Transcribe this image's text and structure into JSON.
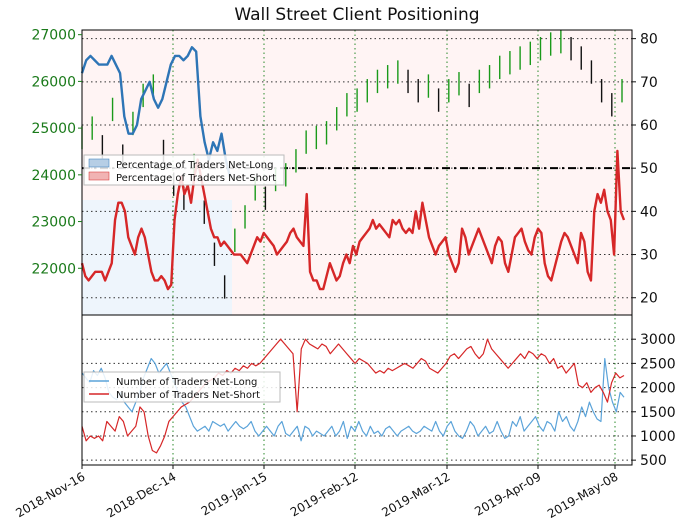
{
  "chart_data": [
    {
      "type": "line",
      "title": "Wall Street Client Positioning",
      "x_tick_labels": [
        "2018-Nov-16",
        "2018-Dec-14",
        "2019-Jan-15",
        "2019-Feb-12",
        "2019-Mar-12",
        "2019-Apr-09",
        "2019-May-08"
      ],
      "price_axis": {
        "ylim": [
          21000,
          27100
        ],
        "ticks": [
          22000,
          23000,
          24000,
          25000,
          26000,
          27000
        ],
        "color": "#1a7a1a"
      },
      "percent_axis": {
        "ylim": [
          16,
          82
        ],
        "ticks": [
          20,
          30,
          40,
          50,
          60,
          70,
          80
        ]
      },
      "reference_line": 50,
      "legend": {
        "position": "left",
        "entries": [
          "Percentage of Traders Net-Long",
          "Percentage of Traders Net-Short"
        ]
      },
      "series": [
        {
          "name": "Percentage of Traders Net-Long",
          "color": "#2e75b6",
          "values": [
            72,
            75,
            76,
            75,
            74,
            74,
            74,
            76,
            74,
            72,
            62,
            58,
            58,
            60,
            66,
            68,
            70,
            66,
            64,
            66,
            70,
            74,
            76,
            76,
            75,
            76,
            78,
            77,
            62,
            56,
            52,
            56,
            54,
            58,
            52,
            48
          ]
        },
        {
          "name": "Percentage of Traders Net-Short",
          "color": "#d62728",
          "values": [
            28,
            25,
            24,
            25,
            26,
            26,
            26,
            24,
            26,
            28,
            38,
            42,
            42,
            40,
            34,
            32,
            30,
            34,
            36,
            34,
            30,
            26,
            24,
            24,
            25,
            24,
            22,
            23,
            38,
            44,
            48,
            44,
            46,
            42,
            48,
            52,
            48,
            44,
            40,
            36,
            34,
            34,
            32,
            33,
            32,
            31,
            30,
            30,
            30,
            29,
            28,
            30,
            32,
            34,
            33,
            35,
            34,
            33,
            32,
            30,
            31,
            32,
            33,
            35,
            36,
            34,
            33,
            32,
            44,
            26,
            24,
            24,
            22,
            22,
            25,
            28,
            26,
            24,
            25,
            28,
            30,
            28,
            32,
            30,
            33,
            34,
            35,
            36,
            38,
            36,
            37,
            36,
            35,
            34,
            38,
            37,
            38,
            36,
            35,
            36,
            35,
            40,
            36,
            42,
            38,
            34,
            32,
            30,
            32,
            33,
            34,
            30,
            28,
            26,
            28,
            36,
            34,
            30,
            32,
            34,
            36,
            34,
            32,
            30,
            28,
            32,
            34,
            33,
            28,
            26,
            30,
            34,
            35,
            36,
            33,
            31,
            30,
            34,
            36,
            35,
            28,
            25,
            24,
            27,
            30,
            33,
            35,
            34,
            32,
            30,
            28,
            35,
            33,
            26,
            24,
            40,
            44,
            42,
            45,
            40,
            38,
            30,
            54,
            40,
            38
          ]
        }
      ]
    },
    {
      "type": "line",
      "x_tick_labels": [
        "2018-Nov-16",
        "2018-Dec-14",
        "2019-Jan-15",
        "2019-Feb-12",
        "2019-Mar-12",
        "2019-Apr-09",
        "2019-May-08"
      ],
      "ylim": [
        400,
        3500
      ],
      "ticks": [
        500,
        1000,
        1500,
        2000,
        2500,
        3000
      ],
      "legend": {
        "position": "left",
        "entries": [
          "Number of Traders Net-Long",
          "Number of Traders Net-Short"
        ]
      },
      "series": [
        {
          "name": "Number of Traders Net-Long",
          "color": "#5ba3d9",
          "values": [
            2300,
            2200,
            2100,
            2350,
            2250,
            2400,
            2200,
            1900,
            1800,
            1750,
            1900,
            1700,
            1600,
            1500,
            1700,
            1900,
            2200,
            2400,
            2600,
            2500,
            2300,
            2400,
            2500,
            2300,
            2100,
            1900,
            1700,
            1600,
            1400,
            1200,
            1100,
            1150,
            1200,
            1100,
            1300,
            1250,
            1200,
            1250,
            1100,
            1200,
            1300,
            1200,
            1150,
            1200,
            1300,
            1100,
            1000,
            1100,
            1200,
            1100,
            1000,
            1200,
            1300,
            1050,
            1000,
            1100,
            1200,
            900,
            1200,
            1150,
            1000,
            1100,
            1050,
            1000,
            1100,
            1200,
            1000,
            1100,
            1300,
            950,
            1200,
            1100,
            1300,
            1100,
            1000,
            1200,
            1050,
            1100,
            1000,
            1150,
            1200,
            1100,
            1000,
            1100,
            1150,
            1200,
            1100,
            1050,
            1100,
            1200,
            1150,
            1100,
            1300,
            1100,
            1000,
            1200,
            1300,
            1100,
            1000,
            950,
            1100,
            1300,
            1200,
            1000,
            1100,
            1200,
            1050,
            1100,
            1300,
            1100,
            950,
            1000,
            1300,
            1200,
            1400,
            1100,
            1200,
            1300,
            1400,
            1200,
            1100,
            1300,
            1250,
            1100,
            1500,
            1300,
            1400,
            1200,
            1100,
            1300,
            1600,
            1400,
            1700,
            1500,
            1350,
            1300,
            2600,
            2000,
            1700,
            1500,
            1900,
            1800
          ]
        },
        {
          "name": "Number of Traders Net-Short",
          "color": "#d62728",
          "values": [
            1200,
            900,
            1000,
            950,
            1000,
            900,
            1300,
            1200,
            1100,
            1400,
            1300,
            1000,
            1100,
            1200,
            1600,
            1500,
            1000,
            700,
            650,
            800,
            1000,
            1300,
            1400,
            1500,
            1600,
            1650,
            1700,
            1800,
            1900,
            2000,
            2100,
            2150,
            2200,
            2300,
            2250,
            2350,
            2300,
            2400,
            2350,
            2450,
            2400,
            2500,
            2450,
            2500,
            2600,
            2700,
            2800,
            2900,
            3000,
            2900,
            2800,
            2700,
            1500,
            2800,
            3000,
            2900,
            2850,
            2800,
            2900,
            2850,
            2700,
            2800,
            2900,
            2800,
            2700,
            2600,
            2500,
            2600,
            2550,
            2500,
            2400,
            2300,
            2350,
            2300,
            2400,
            2350,
            2400,
            2450,
            2500,
            2450,
            2400,
            2500,
            2600,
            2550,
            2400,
            2350,
            2300,
            2400,
            2500,
            2650,
            2700,
            2600,
            2700,
            2800,
            2850,
            2700,
            2600,
            2700,
            3000,
            2800,
            2700,
            2600,
            2500,
            2400,
            2500,
            2600,
            2700,
            2600,
            2750,
            2700,
            2600,
            2700,
            2650,
            2500,
            2600,
            2400,
            2450,
            2300,
            2400,
            2500,
            2050,
            2000,
            2100,
            1900,
            2000,
            2050,
            1900,
            1700,
            2100,
            2300,
            2200,
            2250
          ]
        }
      ]
    }
  ]
}
